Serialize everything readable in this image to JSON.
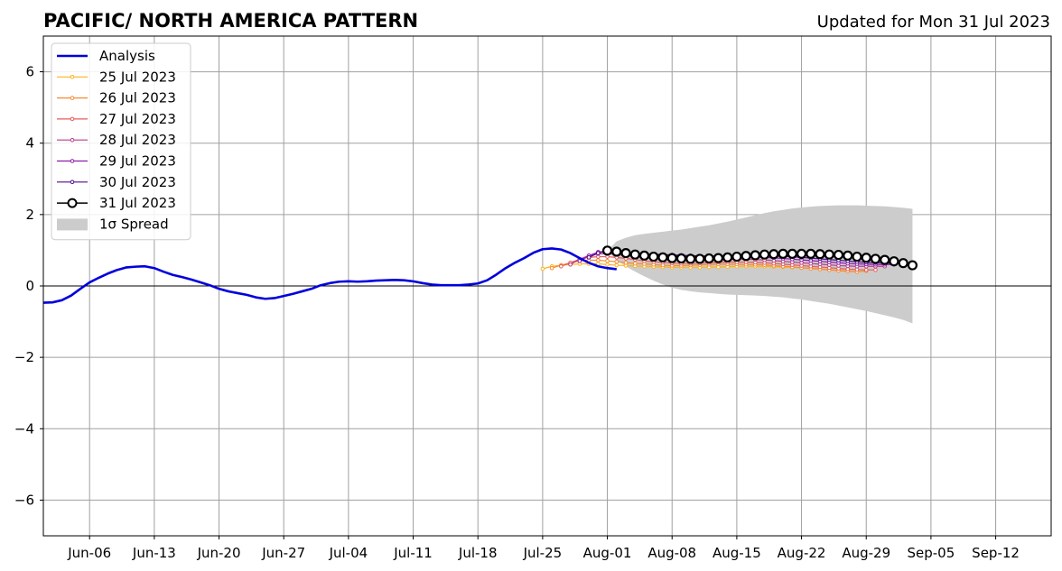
{
  "chart_data": {
    "type": "line",
    "title": "PACIFIC/ NORTH AMERICA PATTERN",
    "subtitle": "Updated for Mon 31 Jul 2023",
    "xlabel": "",
    "ylabel": "",
    "x_range": [
      "2023-06-01",
      "2023-09-18"
    ],
    "ylim": [
      -7,
      7
    ],
    "grid": true,
    "legend_position": "upper-left",
    "x_tick_labels": [
      "Jun-06",
      "Jun-13",
      "Jun-20",
      "Jun-27",
      "Jul-04",
      "Jul-11",
      "Jul-18",
      "Jul-25",
      "Aug-01",
      "Aug-08",
      "Aug-15",
      "Aug-22",
      "Aug-29",
      "Sep-05",
      "Sep-12"
    ],
    "x_tick_dates": [
      "2023-06-06",
      "2023-06-13",
      "2023-06-20",
      "2023-06-27",
      "2023-07-04",
      "2023-07-11",
      "2023-07-18",
      "2023-07-25",
      "2023-08-01",
      "2023-08-08",
      "2023-08-15",
      "2023-08-22",
      "2023-08-29",
      "2023-09-05",
      "2023-09-12"
    ],
    "y_ticks": [
      6,
      4,
      2,
      0,
      -2,
      -4,
      -6
    ],
    "y_tick_labels": [
      "6",
      "4",
      "2",
      "0",
      "−2",
      "−4",
      "−6"
    ],
    "analysis": {
      "name": "Analysis",
      "color": "#0000dd",
      "start_date": "2023-06-01",
      "values": [
        -0.47,
        -0.46,
        -0.4,
        -0.27,
        -0.08,
        0.1,
        0.23,
        0.35,
        0.45,
        0.52,
        0.54,
        0.55,
        0.5,
        0.4,
        0.31,
        0.25,
        0.18,
        0.1,
        0.02,
        -0.08,
        -0.15,
        -0.2,
        -0.25,
        -0.32,
        -0.36,
        -0.34,
        -0.28,
        -0.22,
        -0.15,
        -0.08,
        0.02,
        0.08,
        0.12,
        0.13,
        0.12,
        0.13,
        0.15,
        0.16,
        0.17,
        0.16,
        0.13,
        0.08,
        0.04,
        0.02,
        0.02,
        0.02,
        0.04,
        0.07,
        0.16,
        0.32,
        0.5,
        0.65,
        0.78,
        0.93,
        1.03,
        1.05,
        1.02,
        0.92,
        0.78,
        0.65,
        0.55,
        0.5,
        0.47
      ]
    },
    "forecasts": [
      {
        "name": "25 Jul 2023",
        "color": "#fbb41a",
        "start_date": "2023-07-25",
        "values": [
          0.48,
          0.55,
          0.58,
          0.6,
          0.62,
          0.62,
          0.62,
          0.6,
          0.58,
          0.57,
          0.56,
          0.55,
          0.54,
          0.53,
          0.52,
          0.52,
          0.52,
          0.52,
          0.53,
          0.53,
          0.54,
          0.55,
          0.55,
          0.55,
          0.55,
          0.54,
          0.53,
          0.52,
          0.51,
          0.5,
          0.48,
          0.46,
          0.44,
          0.42,
          0.4
        ]
      },
      {
        "name": "26 Jul 2023",
        "color": "#f78b31",
        "start_date": "2023-07-26",
        "values": [
          0.5,
          0.58,
          0.65,
          0.7,
          0.72,
          0.72,
          0.7,
          0.68,
          0.65,
          0.63,
          0.62,
          0.6,
          0.58,
          0.57,
          0.57,
          0.58,
          0.59,
          0.6,
          0.61,
          0.61,
          0.61,
          0.6,
          0.6,
          0.59,
          0.57,
          0.55,
          0.53,
          0.51,
          0.49,
          0.47,
          0.45,
          0.43,
          0.41,
          0.4,
          0.42
        ]
      },
      {
        "name": "27 Jul 2023",
        "color": "#e55c5c",
        "start_date": "2023-07-27",
        "values": [
          0.55,
          0.65,
          0.75,
          0.8,
          0.82,
          0.82,
          0.8,
          0.77,
          0.74,
          0.7,
          0.68,
          0.66,
          0.64,
          0.63,
          0.63,
          0.64,
          0.65,
          0.66,
          0.67,
          0.67,
          0.67,
          0.66,
          0.65,
          0.63,
          0.61,
          0.59,
          0.57,
          0.55,
          0.53,
          0.51,
          0.49,
          0.47,
          0.46,
          0.45,
          0.45
        ]
      },
      {
        "name": "28 Jul 2023",
        "color": "#b83e8c",
        "start_date": "2023-07-28",
        "values": [
          0.6,
          0.75,
          0.85,
          0.9,
          0.9,
          0.88,
          0.85,
          0.82,
          0.8,
          0.78,
          0.76,
          0.74,
          0.72,
          0.71,
          0.71,
          0.72,
          0.73,
          0.74,
          0.75,
          0.75,
          0.74,
          0.73,
          0.71,
          0.69,
          0.67,
          0.65,
          0.63,
          0.61,
          0.59,
          0.57,
          0.56,
          0.55,
          0.55,
          0.55,
          0.55
        ]
      },
      {
        "name": "29 Jul 2023",
        "color": "#8c1aab",
        "start_date": "2023-07-29",
        "values": [
          0.7,
          0.85,
          0.95,
          0.98,
          0.96,
          0.93,
          0.9,
          0.88,
          0.87,
          0.86,
          0.85,
          0.84,
          0.83,
          0.82,
          0.82,
          0.82,
          0.82,
          0.82,
          0.82,
          0.81,
          0.8,
          0.79,
          0.77,
          0.75,
          0.73,
          0.71,
          0.69,
          0.67,
          0.65,
          0.63,
          0.62,
          0.61,
          0.6,
          0.6,
          0.6
        ]
      },
      {
        "name": "30 Jul 2023",
        "color": "#4b0c8f",
        "start_date": "2023-07-30",
        "values": [
          0.8,
          0.92,
          0.98,
          0.97,
          0.94,
          0.92,
          0.9,
          0.89,
          0.88,
          0.87,
          0.86,
          0.85,
          0.84,
          0.84,
          0.84,
          0.84,
          0.85,
          0.85,
          0.85,
          0.85,
          0.84,
          0.83,
          0.82,
          0.8,
          0.78,
          0.76,
          0.74,
          0.72,
          0.7,
          0.68,
          0.66,
          0.65,
          0.64,
          0.63,
          0.62
        ]
      },
      {
        "name": "31 Jul 2023",
        "color": "#000000",
        "start_date": "2023-08-01",
        "values": [
          0.99,
          0.96,
          0.92,
          0.88,
          0.85,
          0.82,
          0.8,
          0.78,
          0.77,
          0.76,
          0.76,
          0.77,
          0.78,
          0.8,
          0.82,
          0.84,
          0.86,
          0.88,
          0.89,
          0.9,
          0.9,
          0.9,
          0.9,
          0.89,
          0.88,
          0.87,
          0.85,
          0.82,
          0.79,
          0.76,
          0.73,
          0.69,
          0.64,
          0.58
        ]
      }
    ],
    "spread": {
      "name": "1σ Spread",
      "color": "#cccccc",
      "start_date": "2023-08-01",
      "upper": [
        0.99,
        1.25,
        1.35,
        1.42,
        1.46,
        1.49,
        1.52,
        1.55,
        1.58,
        1.62,
        1.66,
        1.7,
        1.75,
        1.8,
        1.86,
        1.92,
        1.98,
        2.04,
        2.09,
        2.13,
        2.17,
        2.2,
        2.22,
        2.24,
        2.25,
        2.26,
        2.26,
        2.26,
        2.25,
        2.24,
        2.23,
        2.21,
        2.19,
        2.16
      ],
      "lower": [
        0.99,
        0.72,
        0.55,
        0.4,
        0.27,
        0.15,
        0.04,
        -0.05,
        -0.11,
        -0.15,
        -0.18,
        -0.2,
        -0.22,
        -0.24,
        -0.25,
        -0.26,
        -0.27,
        -0.28,
        -0.3,
        -0.32,
        -0.35,
        -0.38,
        -0.42,
        -0.46,
        -0.5,
        -0.55,
        -0.6,
        -0.65,
        -0.7,
        -0.76,
        -0.82,
        -0.88,
        -0.95,
        -1.05
      ]
    }
  }
}
